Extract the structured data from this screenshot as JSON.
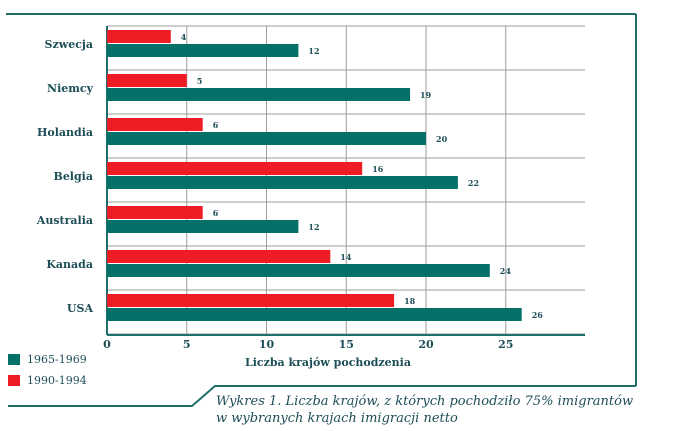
{
  "colors": {
    "series_1965": "#047068",
    "series_1990": "#ee1c24",
    "frame": "#1d6f6a",
    "text": "#1d4e57"
  },
  "legend": {
    "items": [
      {
        "label": "1965-1969",
        "color": "#047068"
      },
      {
        "label": "1990-1994",
        "color": "#ee1c24"
      }
    ]
  },
  "caption": {
    "line1": "Wykres 1. Liczba krajów, z których pochodziło 75% imigrantów",
    "line2": "w wybranych krajach imigracji netto"
  },
  "chart_data": {
    "type": "bar",
    "orientation": "horizontal",
    "categories": [
      "Szwecja",
      "Niemcy",
      "Holandia",
      "Belgia",
      "Australia",
      "Kanada",
      "USA"
    ],
    "series": [
      {
        "name": "1990-1994",
        "color": "#ee1c24",
        "values": [
          4,
          5,
          6,
          16,
          6,
          14,
          18
        ]
      },
      {
        "name": "1965-1969",
        "color": "#047068",
        "values": [
          12,
          19,
          20,
          22,
          12,
          24,
          26
        ]
      }
    ],
    "xlabel": "Liczba krajów pochodzenia",
    "ylabel": "",
    "xlim": [
      0,
      30
    ],
    "xticks": [
      0,
      5,
      10,
      15,
      20,
      25
    ],
    "grid": true,
    "legend_position": "bottom-left"
  }
}
